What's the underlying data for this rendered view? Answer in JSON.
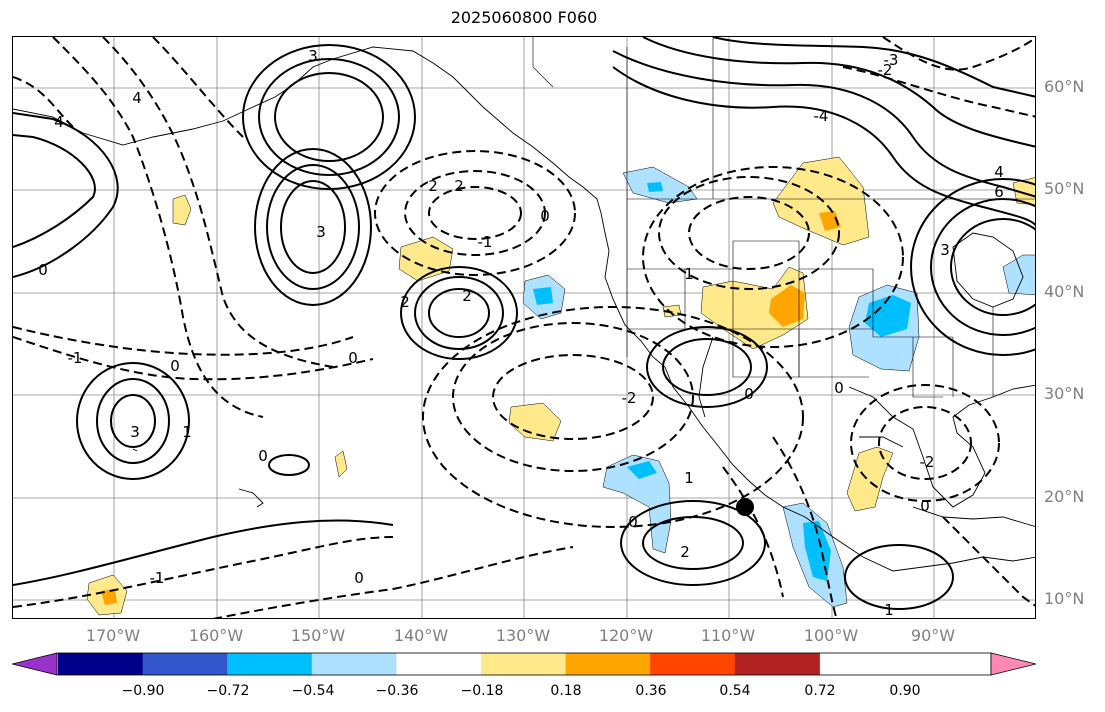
{
  "title": "2025060800 F060",
  "lat_labels": [
    "60°N",
    "50°N",
    "40°N",
    "30°N",
    "20°N",
    "10°N"
  ],
  "lon_labels": [
    "170°W",
    "160°W",
    "150°W",
    "140°W",
    "130°W",
    "120°W",
    "110°W",
    "100°W",
    "90°W"
  ],
  "colorbar": {
    "ticks": [
      "−0.90",
      "−0.72",
      "−0.54",
      "−0.36",
      "−0.18",
      "0.18",
      "0.36",
      "0.54",
      "0.72",
      "0.90"
    ],
    "colors": [
      "#9932cc",
      "#00008b",
      "#3355cc",
      "#00bfff",
      "#aee0ff",
      "#ffffff",
      "#ffe98a",
      "#ffa500",
      "#ff4500",
      "#b22222",
      "#ff88b0"
    ]
  },
  "contour_labels": [
    "3",
    "2",
    "-4",
    "-3",
    "-2",
    "0",
    "1",
    "-1",
    "4",
    "6"
  ],
  "colors": {
    "land_outline": "#000000",
    "grid": "#808080",
    "contour": "#000000"
  }
}
